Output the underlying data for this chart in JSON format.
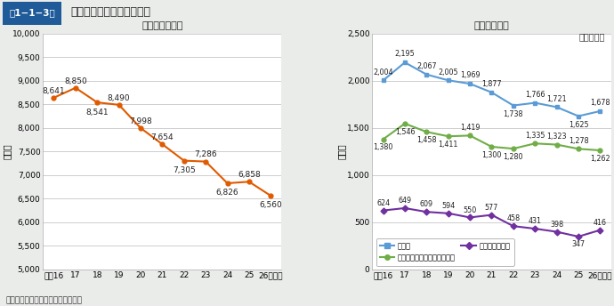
{
  "title": "火災による死傷者数の推移",
  "header_label": "第1−1−3図",
  "years": [
    16,
    17,
    18,
    19,
    20,
    21,
    22,
    23,
    24,
    25,
    26
  ],
  "year_labels": [
    "平成16",
    "17",
    "18",
    "19",
    "20",
    "21",
    "22",
    "23",
    "24",
    "25",
    "26（年）"
  ],
  "injured_title": "負傷者数の推移",
  "injured_values": [
    8641,
    8850,
    8541,
    8490,
    7998,
    7654,
    7305,
    7286,
    6826,
    6858,
    6560
  ],
  "injured_color": "#e05a00",
  "injured_ylim": [
    5000,
    10000
  ],
  "injured_yticks": [
    5000,
    5500,
    6000,
    6500,
    7000,
    7500,
    8000,
    8500,
    9000,
    9500,
    10000
  ],
  "death_title": "死者数の推移",
  "death_total": [
    2004,
    2195,
    2067,
    2005,
    1969,
    1877,
    1738,
    1766,
    1721,
    1625,
    1678
  ],
  "death_excl": [
    1380,
    1546,
    1458,
    1411,
    1419,
    1300,
    1280,
    1335,
    1323,
    1278,
    1262
  ],
  "death_arson": [
    624,
    649,
    609,
    594,
    550,
    577,
    458,
    431,
    398,
    347,
    416
  ],
  "death_total_color": "#5b9bd5",
  "death_excl_color": "#70ad47",
  "death_arson_color": "#7030a0",
  "death_ylim": [
    0,
    2500
  ],
  "death_yticks": [
    0,
    500,
    1000,
    1500,
    2000,
    2500
  ],
  "legend_total": "死者数",
  "legend_excl": "放火自殺者等を除いた死者数",
  "legend_arson": "放火自殺者等数",
  "background_color": "#eaecea",
  "plot_bg_color": "#ffffff",
  "ylabel": "（人）",
  "note": "（備考）　「火災報告」により作成",
  "each_year_label": "（各年中）",
  "header_bg": "#1f5b99",
  "grid_color": "#bbbbbb"
}
